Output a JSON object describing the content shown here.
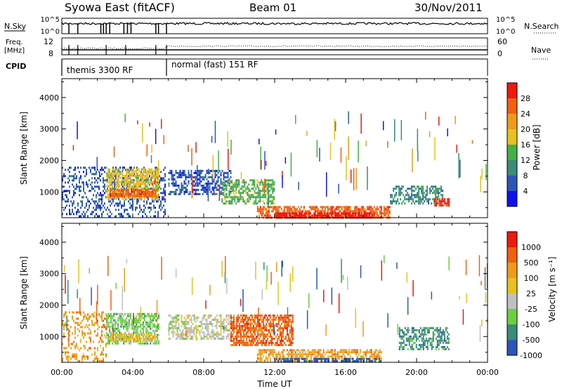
{
  "header": {
    "station": "Syowa East (fitACF)",
    "beam": "Beam 01",
    "date": "30/Nov/2011"
  },
  "summary_panels": {
    "nsky_label": "N.Sky",
    "nsky_ticks": [
      "10^5",
      "10^0"
    ],
    "nsearch_label": "N.Search",
    "nsearch_ticks": [
      "10^5",
      "10^0"
    ],
    "freq_label": [
      "Freq.",
      "[MHz]"
    ],
    "freq_ticks": [
      "12",
      "8"
    ],
    "nave_label": "Nave",
    "nave_ticks": [
      "60",
      "0"
    ],
    "cpid_label": "CPID",
    "cpid_segments": [
      {
        "label": "themis 3300 RF",
        "start_hour": 0,
        "end_hour": 5.9
      },
      {
        "label": "normal (fast) 151 RF",
        "start_hour": 5.9,
        "end_hour": 24
      }
    ]
  },
  "axes": {
    "xlabel": "Time UT",
    "ylabel": "Slant Range [km]",
    "xticks": [
      "00:00",
      "04:00",
      "08:00",
      "12:00",
      "16:00",
      "20:00",
      "00:00"
    ],
    "yticks": [
      "1000",
      "2000",
      "3000",
      "4000"
    ]
  },
  "colorbars": {
    "power": {
      "label": "Power [dB]",
      "ticks": [
        "4",
        "8",
        "12",
        "16",
        "20",
        "24",
        "28"
      ],
      "colors": [
        "#1010ee",
        "#2e55b8",
        "#3a8c78",
        "#45b048",
        "#e8c020",
        "#f09a1a",
        "#f06010",
        "#ee1a10"
      ]
    },
    "velocity": {
      "label": "Velocity [m s⁻¹]",
      "ticks": [
        "1000",
        "500",
        "100",
        "25",
        "-25",
        "-100",
        "-500",
        "-1000"
      ],
      "colors": [
        "#2e55b8",
        "#3a8c78",
        "#6ad040",
        "#c0c0c0",
        "#e8c020",
        "#f09a1a",
        "#f06010",
        "#ee1a10"
      ]
    }
  },
  "chart_data": [
    {
      "type": "heatmap",
      "name": "Power",
      "xlabel": "Time UT",
      "ylabel": "Slant Range [km]",
      "xlim_hours": [
        0,
        24
      ],
      "ylim_km": [
        180,
        4600
      ],
      "colorbar_label": "Power [dB]",
      "colorbar_ticks": [
        4,
        8,
        12,
        16,
        20,
        24,
        28
      ],
      "scatter_regions": [
        {
          "t0": 0.0,
          "t1": 5.8,
          "r0": 200,
          "r1": 1800,
          "level": 1,
          "density": 0.35
        },
        {
          "t0": 2.5,
          "t1": 5.5,
          "r0": 800,
          "r1": 1750,
          "level": 4,
          "density": 0.65
        },
        {
          "t0": 2.7,
          "t1": 5.3,
          "r0": 850,
          "r1": 1100,
          "level": 6,
          "density": 0.8
        },
        {
          "t0": 6.0,
          "t1": 9.5,
          "r0": 900,
          "r1": 1700,
          "level": 1,
          "density": 0.55
        },
        {
          "t0": 9.0,
          "t1": 12.0,
          "r0": 600,
          "r1": 1400,
          "level": 3,
          "density": 0.6
        },
        {
          "t0": 11.0,
          "t1": 18.5,
          "r0": 200,
          "r1": 550,
          "level": 6,
          "density": 0.7
        },
        {
          "t0": 12.0,
          "t1": 17.5,
          "r0": 200,
          "r1": 350,
          "level": 7,
          "density": 0.85
        },
        {
          "t0": 18.5,
          "t1": 21.5,
          "r0": 600,
          "r1": 1200,
          "level": 2,
          "density": 0.5
        },
        {
          "t0": 21.0,
          "t1": 21.8,
          "r0": 550,
          "r1": 800,
          "level": 7,
          "density": 0.75
        }
      ]
    },
    {
      "type": "heatmap",
      "name": "Velocity",
      "xlabel": "Time UT",
      "ylabel": "Slant Range [km]",
      "xlim_hours": [
        0,
        24
      ],
      "ylim_km": [
        180,
        4600
      ],
      "colorbar_label": "Velocity [m s⁻¹]",
      "colorbar_ticks": [
        1000,
        500,
        100,
        25,
        -25,
        -100,
        -500,
        -1000
      ],
      "scatter_regions": [
        {
          "t0": 2.5,
          "t1": 5.5,
          "r0": 800,
          "r1": 1750,
          "level": 2,
          "density": 0.65
        },
        {
          "t0": 2.7,
          "t1": 5.3,
          "r0": 850,
          "r1": 1100,
          "level": 4,
          "density": 0.8
        },
        {
          "t0": 0.0,
          "t1": 2.5,
          "r0": 200,
          "r1": 1800,
          "level": 5,
          "density": 0.3
        },
        {
          "t0": 6.0,
          "t1": 9.5,
          "r0": 900,
          "r1": 1700,
          "level": 3,
          "density": 0.55
        },
        {
          "t0": 9.5,
          "t1": 13.0,
          "r0": 700,
          "r1": 1700,
          "level": 6,
          "density": 0.7
        },
        {
          "t0": 11.0,
          "t1": 18.0,
          "r0": 250,
          "r1": 600,
          "level": 5,
          "density": 0.6
        },
        {
          "t0": 12.0,
          "t1": 18.0,
          "r0": 200,
          "r1": 320,
          "level": 0,
          "density": 0.6
        },
        {
          "t0": 19.0,
          "t1": 21.8,
          "r0": 600,
          "r1": 1300,
          "level": 1,
          "density": 0.55
        }
      ]
    }
  ]
}
